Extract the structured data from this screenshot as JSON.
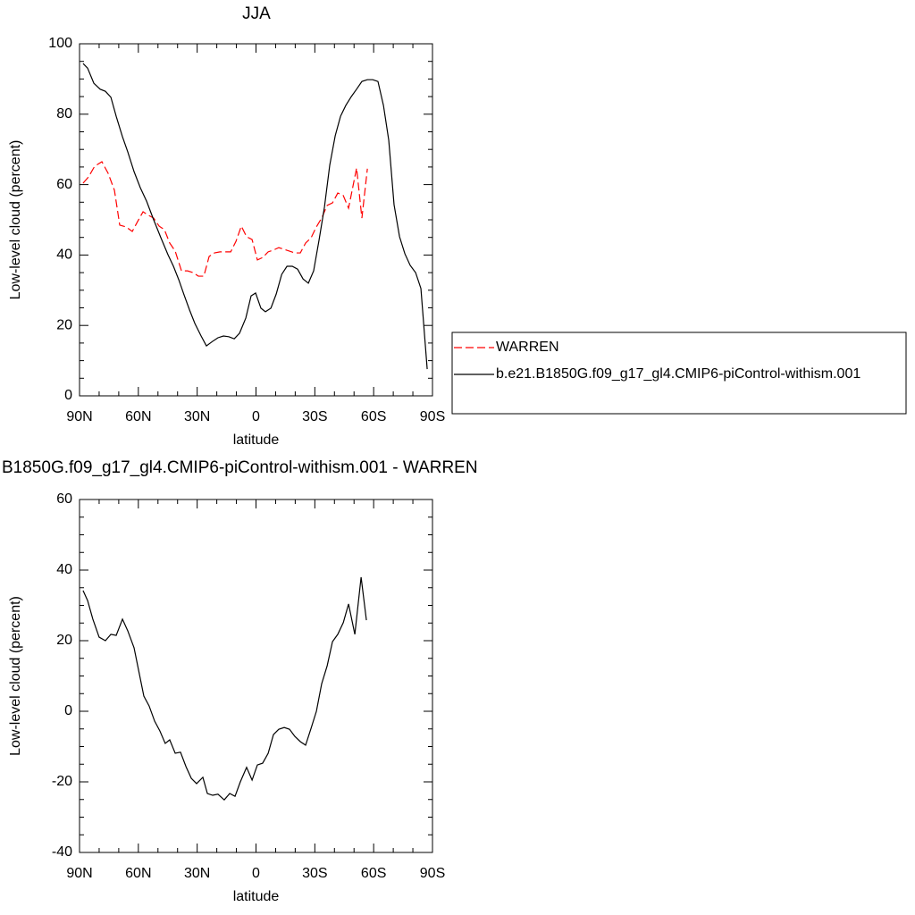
{
  "chart_data": [
    {
      "type": "line",
      "title": "JJA",
      "xlabel": "latitude",
      "ylabel": "Low-level cloud (percent)",
      "xlim": [
        90,
        -90
      ],
      "xticks": [
        {
          "value": 90,
          "label": "90N"
        },
        {
          "value": 60,
          "label": "60N"
        },
        {
          "value": 30,
          "label": "30N"
        },
        0,
        {
          "value": -30,
          "label": "30S"
        },
        {
          "value": -60,
          "label": "60S"
        },
        {
          "value": -90,
          "label": "90S"
        }
      ],
      "ylim": [
        0,
        100
      ],
      "yticks": [
        0,
        20,
        40,
        60,
        80,
        100
      ],
      "legend": "right",
      "series": [
        {
          "name": "WARREN",
          "color": "#ff0000",
          "dash": "dashed",
          "x": [
            88.2,
            85.4,
            82.3,
            78.6,
            75.4,
            72.2,
            69.5,
            66.3,
            63.1,
            60.4,
            57.6,
            54.9,
            52.2,
            49.4,
            46.7,
            44,
            41.2,
            38,
            34.9,
            32.1,
            29.4,
            26.6,
            23.9,
            21.2,
            18.4,
            15.7,
            12.9,
            10.2,
            7.5,
            4.8,
            2,
            -0.7,
            -3.4,
            -6.2,
            -8.9,
            -11.6,
            -14.4,
            -17.1,
            -19.8,
            -22.6,
            -25.3,
            -28.1,
            -30.8,
            -33.5,
            -36.3,
            -39,
            -41.7,
            -44.5,
            -47.2,
            -51.3,
            -54,
            -56.8
          ],
          "values": [
            60.4,
            62.2,
            65.2,
            66.5,
            63.2,
            58.4,
            48.5,
            48,
            46.7,
            49.5,
            52.3,
            51.3,
            50.5,
            48.2,
            47.2,
            43.4,
            41.1,
            35.5,
            35.5,
            35,
            34,
            34,
            39.6,
            40.6,
            40.9,
            40.9,
            40.9,
            43.9,
            48.2,
            45.2,
            44.4,
            38.6,
            39.3,
            40.9,
            41.4,
            42.1,
            41.6,
            41.1,
            40.6,
            40.6,
            43.4,
            44.9,
            48,
            50.5,
            54.1,
            54.8,
            57.6,
            56.9,
            53.3,
            64.7,
            50.5,
            64.5
          ]
        },
        {
          "name": "b.e21.B1850G.f09_g17_gl4.CMIP6-piControl-withism.001",
          "color": "#000000",
          "dash": "solid",
          "x": [
            88.2,
            85.9,
            82.7,
            79.5,
            76.8,
            74,
            71.3,
            68.1,
            65.4,
            62.2,
            59,
            55.8,
            52.2,
            48.5,
            44.9,
            42.1,
            39.4,
            36.7,
            33.9,
            31.2,
            28,
            25.3,
            22.1,
            19.4,
            16.6,
            13.9,
            11.1,
            8.4,
            5.2,
            2.5,
            0.2,
            -2.5,
            -4.8,
            -7.6,
            -10.3,
            -13.1,
            -15.8,
            -18.5,
            -21.2,
            -24,
            -26.7,
            -29.4,
            -32.2,
            -34.9,
            -37.6,
            -40.4,
            -43.1,
            -45.8,
            -48.6,
            -51.3,
            -54,
            -56.8,
            -59.5,
            -62.2,
            -65,
            -67.7,
            -70.4,
            -73.2,
            -75.9,
            -78.6,
            -81.4,
            -84.1,
            -87.3
          ],
          "values": [
            94.4,
            93.1,
            88.8,
            87.1,
            86.5,
            84.8,
            79.4,
            73.6,
            69.3,
            63.7,
            59.1,
            55.3,
            50,
            44.9,
            40.1,
            36.8,
            33,
            28.7,
            24.4,
            20.6,
            17,
            14.2,
            15.5,
            16.5,
            17,
            16.8,
            16.2,
            17.8,
            22.1,
            28.4,
            29.2,
            24.9,
            23.9,
            24.9,
            28.9,
            34.5,
            36.8,
            36.8,
            36,
            33.2,
            32,
            35.5,
            44.4,
            53.6,
            65.5,
            73.9,
            79.4,
            82.5,
            85,
            87.1,
            89.3,
            89.8,
            89.8,
            89.3,
            82.5,
            72.6,
            54.3,
            45.2,
            40.4,
            37.1,
            35,
            30.5,
            7.6
          ]
        }
      ]
    },
    {
      "type": "line",
      "title": "B1850G.f09_g17_gl4.CMIP6-piControl-withism.001 - WARREN",
      "xlabel": "latitude",
      "ylabel": "Low-level cloud (percent)",
      "xlim": [
        90,
        -90
      ],
      "xticks": [
        {
          "value": 90,
          "label": "90N"
        },
        {
          "value": 60,
          "label": "60N"
        },
        {
          "value": 30,
          "label": "30N"
        },
        0,
        {
          "value": -30,
          "label": "30S"
        },
        {
          "value": -60,
          "label": "60S"
        },
        {
          "value": -90,
          "label": "90S"
        }
      ],
      "ylim": [
        -40,
        60
      ],
      "yticks": [
        -40,
        -20,
        0,
        20,
        40,
        60
      ],
      "series": [
        {
          "color": "#000000",
          "dash": "solid",
          "x": [
            88.2,
            85.9,
            83.2,
            80,
            76.8,
            74,
            71.3,
            68.1,
            65.4,
            62.2,
            59.5,
            57.2,
            54.5,
            51.7,
            49,
            46.3,
            44,
            41.2,
            38.5,
            35.7,
            33,
            30.3,
            27.1,
            24.8,
            22.1,
            19.4,
            16.2,
            13.4,
            10.7,
            8,
            4.8,
            2,
            -0.7,
            -3.4,
            -6.2,
            -8.9,
            -11.6,
            -14.4,
            -17.1,
            -19.8,
            -22.6,
            -25.3,
            -28.1,
            -30.8,
            -33.5,
            -36.3,
            -39,
            -41.7,
            -44.5,
            -47.2,
            -50.4,
            -53.6,
            -56.3
          ],
          "values": [
            34.2,
            31.4,
            26.1,
            21,
            20,
            21.8,
            21.5,
            26.1,
            22.8,
            18,
            10.6,
            4.3,
            1.5,
            -2.8,
            -5.6,
            -9.1,
            -8.1,
            -11.9,
            -11.6,
            -15.7,
            -19,
            -20.5,
            -18.7,
            -23.3,
            -23.8,
            -23.5,
            -25.1,
            -23.3,
            -24.1,
            -20,
            -15.9,
            -19.5,
            -15.2,
            -14.7,
            -11.9,
            -6.6,
            -5.1,
            -4.6,
            -5.1,
            -7.1,
            -8.6,
            -9.6,
            -4.8,
            0,
            7.8,
            12.9,
            19.7,
            21.8,
            25.1,
            30.4,
            21.8,
            38,
            25.8
          ]
        }
      ]
    }
  ]
}
